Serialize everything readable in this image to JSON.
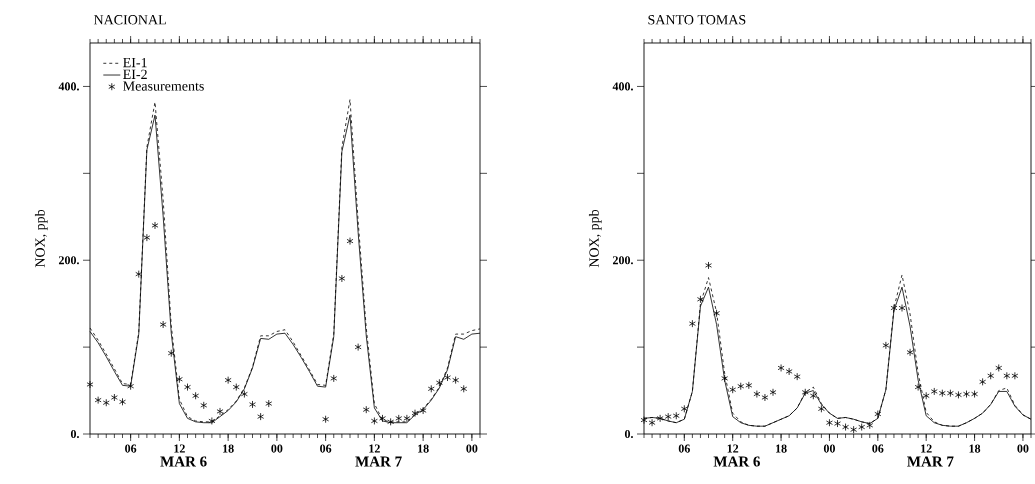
{
  "chart_data": [
    {
      "type": "line",
      "title": "NACIONAL",
      "ylabel": "NOX, ppb",
      "legend": "top left",
      "x": [
        1,
        2,
        3,
        4,
        5,
        6,
        7,
        8,
        9,
        10,
        11,
        12,
        13,
        14,
        15,
        16,
        17,
        18,
        19,
        20,
        21,
        22,
        23,
        24,
        25,
        26,
        27,
        28,
        29,
        30,
        31,
        32,
        33,
        34,
        35,
        36,
        37,
        38,
        39,
        40,
        41,
        42,
        43,
        44,
        45,
        46,
        47,
        48,
        49
      ],
      "xlim": [
        1,
        49
      ],
      "ylim": [
        0,
        450
      ],
      "xticks": [
        {
          "value": 6,
          "label": "06"
        },
        {
          "value": 12,
          "label": "12"
        },
        {
          "value": 18,
          "label": "18"
        },
        {
          "value": 24,
          "label": "00"
        },
        {
          "value": 30,
          "label": "06"
        },
        {
          "value": 36,
          "label": "12"
        },
        {
          "value": 42,
          "label": "18"
        },
        {
          "value": 48,
          "label": "00"
        }
      ],
      "yticks": [
        {
          "value": 0,
          "label": "0."
        },
        {
          "value": 100,
          "label": null
        },
        {
          "value": 200,
          "label": "200."
        },
        {
          "value": 300,
          "label": null
        },
        {
          "value": 400,
          "label": "400."
        }
      ],
      "annotations": [
        "MAR 6",
        "MAR 7"
      ],
      "series": [
        {
          "name": "EI-1",
          "line_style": "dashed",
          "marker": "none",
          "color": "#000000",
          "values": [
            122,
            108,
            92,
            75,
            58,
            57,
            117,
            330,
            382,
            270,
            125,
            40,
            20,
            15,
            14,
            14,
            21,
            28,
            38,
            53,
            77,
            113,
            113,
            118,
            120,
            106,
            90,
            74,
            57,
            56,
            115,
            330,
            385,
            245,
            122,
            35,
            16,
            14,
            14,
            14,
            23,
            29,
            40,
            54,
            76,
            115,
            115,
            119,
            121
          ]
        },
        {
          "name": "EI-2",
          "line_style": "solid",
          "marker": "none",
          "color": "#000000",
          "values": [
            118,
            105,
            89,
            72,
            56,
            55,
            115,
            327,
            367,
            251,
            116,
            35,
            18,
            14,
            13,
            13,
            20,
            27,
            37,
            52,
            76,
            110,
            109,
            115,
            116,
            103,
            88,
            72,
            55,
            54,
            112,
            325,
            367,
            232,
            113,
            30,
            15,
            13,
            13,
            13,
            22,
            28,
            39,
            53,
            74,
            112,
            109,
            115,
            116
          ]
        },
        {
          "name": "Measurements",
          "type": "scatter",
          "marker": "cross",
          "color": "#000000",
          "values": [
            57,
            39,
            36,
            42,
            37,
            55,
            184,
            226,
            240,
            126,
            93,
            63,
            54,
            44,
            33,
            15,
            26,
            62,
            54,
            46,
            34,
            20,
            35,
            null,
            null,
            null,
            null,
            null,
            null,
            17,
            64,
            179,
            222,
            100,
            28,
            15,
            18,
            14,
            18,
            18,
            24,
            27,
            52,
            59,
            65,
            62,
            52,
            null,
            null
          ]
        }
      ]
    },
    {
      "type": "line",
      "title": "SANTO TOMAS",
      "ylabel": "NOX, ppb",
      "x": [
        1,
        2,
        3,
        4,
        5,
        6,
        7,
        8,
        9,
        10,
        11,
        12,
        13,
        14,
        15,
        16,
        17,
        18,
        19,
        20,
        21,
        22,
        23,
        24,
        25,
        26,
        27,
        28,
        29,
        30,
        31,
        32,
        33,
        34,
        35,
        36,
        37,
        38,
        39,
        40,
        41,
        42,
        43,
        44,
        45,
        46,
        47,
        48,
        49
      ],
      "xlim": [
        1,
        49
      ],
      "ylim": [
        0,
        450
      ],
      "xticks": [
        {
          "value": 6,
          "label": "06"
        },
        {
          "value": 12,
          "label": "12"
        },
        {
          "value": 18,
          "label": "18"
        },
        {
          "value": 24,
          "label": "00"
        },
        {
          "value": 30,
          "label": "06"
        },
        {
          "value": 36,
          "label": "12"
        },
        {
          "value": 42,
          "label": "18"
        },
        {
          "value": 48,
          "label": "00"
        }
      ],
      "yticks": [
        {
          "value": 0,
          "label": "0."
        },
        {
          "value": 100,
          "label": null
        },
        {
          "value": 200,
          "label": "200."
        },
        {
          "value": 300,
          "label": null
        },
        {
          "value": 400,
          "label": "400."
        }
      ],
      "annotations": [
        "MAR 6",
        "MAR 7"
      ],
      "series": [
        {
          "line_style": "dashed",
          "marker": "none",
          "color": "#000000",
          "values": [
            18,
            19,
            18,
            15,
            13,
            17,
            49,
            150,
            180,
            140,
            70,
            24,
            14,
            10,
            9,
            9,
            13,
            17,
            21,
            30,
            48,
            54,
            35,
            24,
            18,
            19,
            17,
            14,
            12,
            18,
            51,
            145,
            183,
            138,
            70,
            25,
            14,
            10,
            9,
            9,
            13,
            18,
            24,
            34,
            50,
            53,
            33,
            22,
            17
          ]
        },
        {
          "line_style": "solid",
          "marker": "none",
          "color": "#000000",
          "values": [
            18,
            19,
            18,
            15,
            13,
            17,
            49,
            147,
            169,
            126,
            62,
            20,
            13,
            10,
            9,
            9,
            13,
            17,
            21,
            30,
            47,
            50,
            34,
            24,
            18,
            19,
            17,
            14,
            12,
            18,
            51,
            142,
            169,
            124,
            62,
            21,
            13,
            10,
            9,
            9,
            13,
            18,
            24,
            34,
            49,
            49,
            32,
            22,
            17
          ]
        },
        {
          "type": "scatter",
          "marker": "cross",
          "color": "#000000",
          "values": [
            16,
            13,
            18,
            20,
            21,
            29,
            127,
            155,
            194,
            139,
            64,
            51,
            55,
            56,
            46,
            42,
            48,
            76,
            72,
            66,
            48,
            44,
            29,
            13,
            12,
            8,
            5,
            8,
            10,
            23,
            102,
            145,
            145,
            94,
            54,
            44,
            49,
            47,
            47,
            45,
            46,
            46,
            60,
            67,
            76,
            67,
            67,
            null,
            null
          ]
        }
      ]
    }
  ]
}
